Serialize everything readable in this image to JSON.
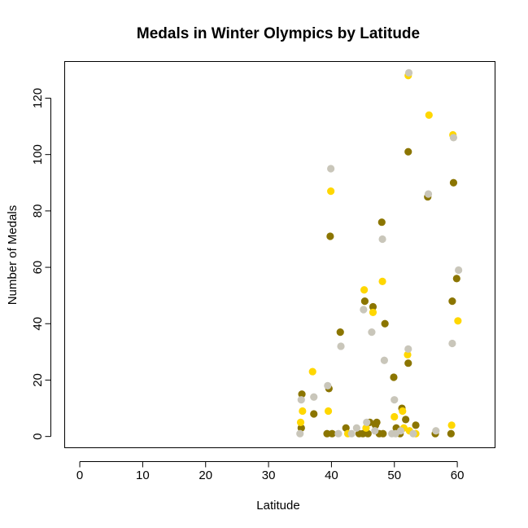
{
  "chart_data": {
    "type": "scatter",
    "title": "Medals in Winter Olympics by Latitude",
    "xlabel": "Latitude",
    "ylabel": "Number of Medals",
    "xlim": [
      -2.4,
      66
    ],
    "ylim": [
      -4,
      133
    ],
    "xticks": [
      0,
      10,
      20,
      30,
      40,
      50,
      60
    ],
    "yticks": [
      0,
      20,
      40,
      60,
      80,
      100,
      120
    ],
    "grid": false,
    "legend": "none",
    "series": [
      {
        "color": "#8B7500",
        "points": [
          [
            35.2,
            3
          ],
          [
            35.3,
            15
          ],
          [
            37.2,
            8
          ],
          [
            39.3,
            1
          ],
          [
            39.6,
            17
          ],
          [
            39.8,
            71
          ],
          [
            40.1,
            1
          ],
          [
            41.4,
            37
          ],
          [
            42.3,
            3
          ],
          [
            44.4,
            1
          ],
          [
            45.0,
            1
          ],
          [
            45.3,
            48
          ],
          [
            45.8,
            1
          ],
          [
            46.1,
            5
          ],
          [
            46.6,
            46
          ],
          [
            47.0,
            4
          ],
          [
            47.2,
            5
          ],
          [
            47.6,
            1
          ],
          [
            48.0,
            76
          ],
          [
            48.2,
            1
          ],
          [
            48.5,
            40
          ],
          [
            49.9,
            21
          ],
          [
            50.3,
            3
          ],
          [
            50.9,
            1
          ],
          [
            51.2,
            10
          ],
          [
            51.8,
            6
          ],
          [
            52.2,
            101
          ],
          [
            52.2,
            26
          ],
          [
            53.4,
            4
          ],
          [
            55.3,
            85
          ],
          [
            56.5,
            1
          ],
          [
            59.0,
            1
          ],
          [
            59.2,
            48
          ],
          [
            59.4,
            90
          ],
          [
            59.9,
            56
          ]
        ]
      },
      {
        "color": "#FFD700",
        "points": [
          [
            35.1,
            5
          ],
          [
            35.4,
            9
          ],
          [
            37.0,
            23
          ],
          [
            39.5,
            9
          ],
          [
            39.9,
            87
          ],
          [
            42.6,
            1
          ],
          [
            45.2,
            52
          ],
          [
            45.5,
            3
          ],
          [
            46.6,
            44
          ],
          [
            48.1,
            55
          ],
          [
            50.0,
            7
          ],
          [
            51.3,
            9
          ],
          [
            51.5,
            3
          ],
          [
            52.1,
            29
          ],
          [
            52.2,
            128
          ],
          [
            52.4,
            2
          ],
          [
            53.4,
            1
          ],
          [
            55.5,
            114
          ],
          [
            59.1,
            4
          ],
          [
            59.3,
            107
          ],
          [
            60.1,
            41
          ]
        ]
      },
      {
        "color": "#C9C6BA",
        "points": [
          [
            35.0,
            1
          ],
          [
            35.2,
            13
          ],
          [
            37.2,
            14
          ],
          [
            39.4,
            18
          ],
          [
            39.9,
            95
          ],
          [
            41.1,
            1
          ],
          [
            41.5,
            32
          ],
          [
            43.2,
            1
          ],
          [
            44.0,
            3
          ],
          [
            45.1,
            45
          ],
          [
            45.6,
            5
          ],
          [
            46.4,
            37
          ],
          [
            46.9,
            2
          ],
          [
            48.1,
            70
          ],
          [
            48.4,
            27
          ],
          [
            49.6,
            1
          ],
          [
            50.0,
            13
          ],
          [
            50.2,
            1
          ],
          [
            51.0,
            2
          ],
          [
            52.2,
            31
          ],
          [
            52.3,
            129
          ],
          [
            53.0,
            1
          ],
          [
            55.4,
            86
          ],
          [
            56.6,
            2
          ],
          [
            59.2,
            33
          ],
          [
            59.4,
            106
          ],
          [
            60.2,
            59
          ]
        ]
      }
    ]
  }
}
